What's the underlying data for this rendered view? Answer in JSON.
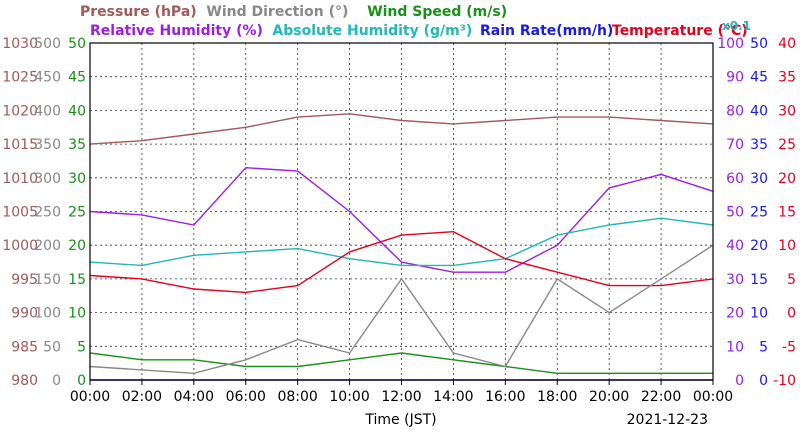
{
  "chart_data": {
    "type": "line",
    "title_segments": [
      {
        "text": "Pressure (hPa)",
        "color": "#a05a5a"
      },
      {
        "text": "Wind Direction (°)",
        "color": "#888888"
      },
      {
        "text": "Wind Speed (m/s)",
        "color": "#1a8f1a"
      },
      {
        "text": "Relative Humidity (%)",
        "color": "#9a1ee6"
      },
      {
        "text": "Absolute Humidity (g/m³)",
        "color": "#22b8b8"
      },
      {
        "text": "Rain Rate(mm/h)",
        "color": "#1a1ae6"
      },
      {
        "text": "Temperature (°C)",
        "color": "#e6001e"
      },
      {
        "text": "x0.1",
        "color": "#22b8b8"
      }
    ],
    "xlabel": "Time (JST)",
    "date": "2021-12-23",
    "x_ticks": [
      "00:00",
      "02:00",
      "04:00",
      "06:00",
      "08:00",
      "10:00",
      "12:00",
      "14:00",
      "16:00",
      "18:00",
      "20:00",
      "22:00",
      "00:00"
    ],
    "axes": {
      "pressure": {
        "ticks": [
          "1030",
          "1025",
          "1020",
          "1015",
          "1010",
          "1005",
          "1000",
          "995",
          "990",
          "985",
          "980"
        ],
        "color": "#a05a5a",
        "ylim": [
          980,
          1030
        ]
      },
      "wind_direction": {
        "ticks": [
          "500",
          "450",
          "400",
          "350",
          "300",
          "250",
          "200",
          "150",
          "100",
          "50",
          "0"
        ],
        "color": "#888888",
        "ylim": [
          0,
          500
        ]
      },
      "wind_speed": {
        "ticks": [
          "50",
          "45",
          "40",
          "35",
          "30",
          "25",
          "20",
          "15",
          "10",
          "5",
          "0"
        ],
        "color": "#1a8f1a",
        "ylim": [
          0,
          50
        ]
      },
      "relative_humidity": {
        "ticks": [
          "100",
          "90",
          "80",
          "70",
          "60",
          "50",
          "40",
          "30",
          "20",
          "10",
          "0"
        ],
        "color": "#9a1ee6",
        "ylim": [
          0,
          100
        ]
      },
      "rain_rate": {
        "ticks": [
          "50",
          "45",
          "40",
          "35",
          "30",
          "25",
          "20",
          "15",
          "10",
          "5",
          "0"
        ],
        "color": "#1a1ae6",
        "ylim": [
          0,
          50
        ]
      },
      "temperature": {
        "ticks": [
          "40",
          "35",
          "30",
          "25",
          "20",
          "15",
          "10",
          "5",
          "0",
          "-5",
          "-10"
        ],
        "color": "#e6001e",
        "ylim": [
          -10,
          40
        ]
      }
    },
    "x_hours": [
      0,
      2,
      4,
      6,
      8,
      10,
      12,
      14,
      16,
      18,
      20,
      22,
      24
    ],
    "series": [
      {
        "name": "Pressure (hPa)",
        "axis": "pressure",
        "color": "#a05a5a",
        "values": [
          1015,
          1015.5,
          1016.5,
          1017.5,
          1019,
          1019.5,
          1018.5,
          1018,
          1018.5,
          1019,
          1019,
          1018.5,
          1018
        ]
      },
      {
        "name": "Relative Humidity (%)",
        "axis": "relative_humidity",
        "color": "#9a1ee6",
        "values": [
          50,
          49,
          46,
          63,
          62,
          50,
          35,
          32,
          32,
          40,
          57,
          61,
          56
        ]
      },
      {
        "name": "Absolute Humidity (g/m³) x0.1",
        "axis": "relative_humidity",
        "color": "#22b8b8",
        "values": [
          35,
          34,
          37,
          38,
          39,
          36,
          34,
          34,
          36,
          43,
          46,
          48,
          46
        ]
      },
      {
        "name": "Temperature (°C)",
        "axis": "temperature",
        "color": "#e6001e",
        "values": [
          5.5,
          5,
          3.5,
          3,
          4,
          9,
          11.5,
          12,
          8,
          6,
          4,
          4,
          5
        ]
      },
      {
        "name": "Wind Speed (m/s)",
        "axis": "wind_speed",
        "color": "#1a8f1a",
        "values": [
          4,
          3,
          3,
          2,
          2,
          3,
          4,
          3,
          2,
          1,
          1,
          1,
          1
        ]
      },
      {
        "name": "Wind Direction (°)",
        "axis": "wind_direction",
        "color": "#888888",
        "values": [
          20,
          15,
          10,
          30,
          60,
          40,
          150,
          40,
          20,
          150,
          100,
          150,
          200
        ]
      },
      {
        "name": "Rain Rate(mm/h)",
        "axis": "rain_rate",
        "color": "#1a1ae6",
        "values": [
          0,
          0,
          0,
          0,
          0,
          0,
          0,
          0,
          0,
          0,
          0,
          0,
          0
        ]
      }
    ]
  }
}
